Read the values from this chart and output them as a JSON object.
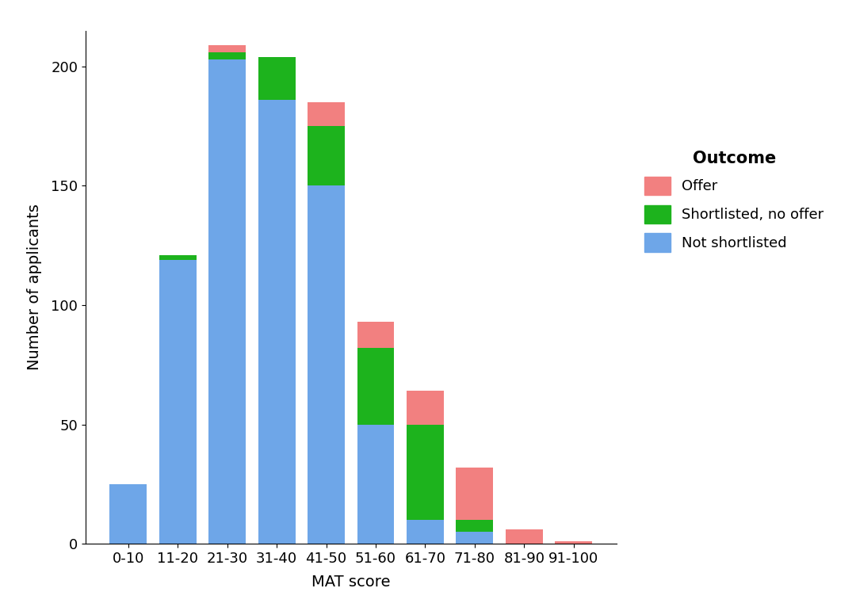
{
  "categories": [
    "0-10",
    "11-20",
    "21-30",
    "31-40",
    "41-50",
    "51-60",
    "61-70",
    "71-80",
    "81-90",
    "91-100"
  ],
  "not_shortlisted": [
    25,
    119,
    203,
    186,
    150,
    50,
    10,
    5,
    0,
    0
  ],
  "shortlisted_no_offer": [
    0,
    2,
    3,
    18,
    25,
    32,
    40,
    5,
    0,
    0
  ],
  "offer": [
    0,
    0,
    3,
    0,
    10,
    11,
    14,
    22,
    6,
    1
  ],
  "color_not_shortlisted": "#6EA6E8",
  "color_shortlisted": "#1DB31D",
  "color_offer": "#F28080",
  "xlabel": "MAT score",
  "ylabel": "Number of applicants",
  "legend_title": "Outcome",
  "background_color": "#FFFFFF",
  "ylim": [
    0,
    215
  ],
  "yticks": [
    0,
    50,
    100,
    150,
    200
  ]
}
